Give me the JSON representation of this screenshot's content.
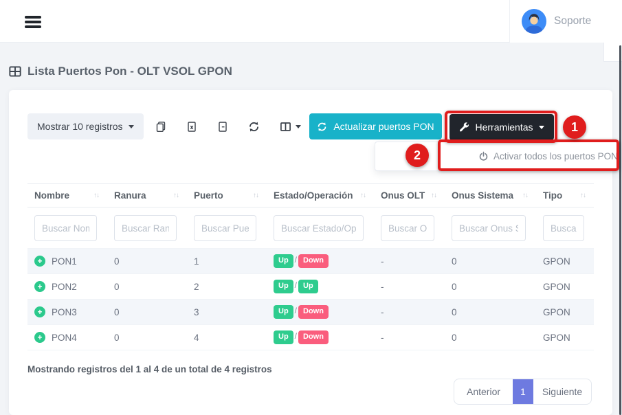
{
  "topbar": {
    "user_label": "Soporte"
  },
  "page": {
    "title": "Lista Puertos Pon - OLT VSOL GPON"
  },
  "toolbar": {
    "length_label": "Mostrar 10 registros",
    "update_label": "Actualizar puertos PON",
    "tools_label": "Herramientas"
  },
  "dropdown": {
    "activate_all_label": "Activar todos los puertos PON"
  },
  "annotations": {
    "step1": "1",
    "step2": "2"
  },
  "icons": {
    "topbar": [
      "hamburger-icon",
      "avatar"
    ],
    "title": [
      "table-icon"
    ],
    "toolbar": [
      "copy-icon",
      "excel-export-icon",
      "file-export-icon",
      "sync-icon",
      "columns-icon",
      "caret-down-icon",
      "refresh-icon",
      "wrench-icon"
    ],
    "dropdown": [
      "power-icon"
    ],
    "table": [
      "sort-icon",
      "plus-circle-icon"
    ]
  },
  "table": {
    "columns": [
      {
        "key": "nombre",
        "label": "Nombre",
        "placeholder": "Buscar Nombre"
      },
      {
        "key": "ranura",
        "label": "Ranura",
        "placeholder": "Buscar Ranura"
      },
      {
        "key": "puerto",
        "label": "Puerto",
        "placeholder": "Buscar Puerto"
      },
      {
        "key": "estado",
        "label": "Estado/Operación",
        "placeholder": "Buscar Estado/Operación"
      },
      {
        "key": "onus_olt",
        "label": "Onus OLT",
        "placeholder": "Buscar Onus OLT"
      },
      {
        "key": "onus_sistema",
        "label": "Onus Sistema",
        "placeholder": "Buscar Onus Sistema"
      },
      {
        "key": "tipo",
        "label": "Tipo",
        "placeholder": "Buscar Tipo"
      }
    ],
    "rows": [
      {
        "nombre": "PON1",
        "ranura": "0",
        "puerto": "1",
        "estado_admin": "Up",
        "estado_oper": "Down",
        "onus_olt": "-",
        "onus_sistema": "0",
        "tipo": "GPON"
      },
      {
        "nombre": "PON2",
        "ranura": "0",
        "puerto": "2",
        "estado_admin": "Up",
        "estado_oper": "Up",
        "onus_olt": "-",
        "onus_sistema": "0",
        "tipo": "GPON"
      },
      {
        "nombre": "PON3",
        "ranura": "0",
        "puerto": "3",
        "estado_admin": "Up",
        "estado_oper": "Down",
        "onus_olt": "-",
        "onus_sistema": "0",
        "tipo": "GPON"
      },
      {
        "nombre": "PON4",
        "ranura": "0",
        "puerto": "4",
        "estado_admin": "Up",
        "estado_oper": "Down",
        "onus_olt": "-",
        "onus_sistema": "0",
        "tipo": "GPON"
      }
    ]
  },
  "footer": {
    "info": "Mostrando registros del 1 al 4 de un total de 4 registros",
    "pagination": {
      "prev": "Anterior",
      "current": "1",
      "next": "Siguiente"
    }
  },
  "colors": {
    "accent_teal": "#18b2c9",
    "dark_button": "#21252c",
    "badge_up": "#2ecc8e",
    "badge_down": "#fa5d7d",
    "annotation_red": "#e01d1d",
    "active_page": "#6e7ae0"
  }
}
